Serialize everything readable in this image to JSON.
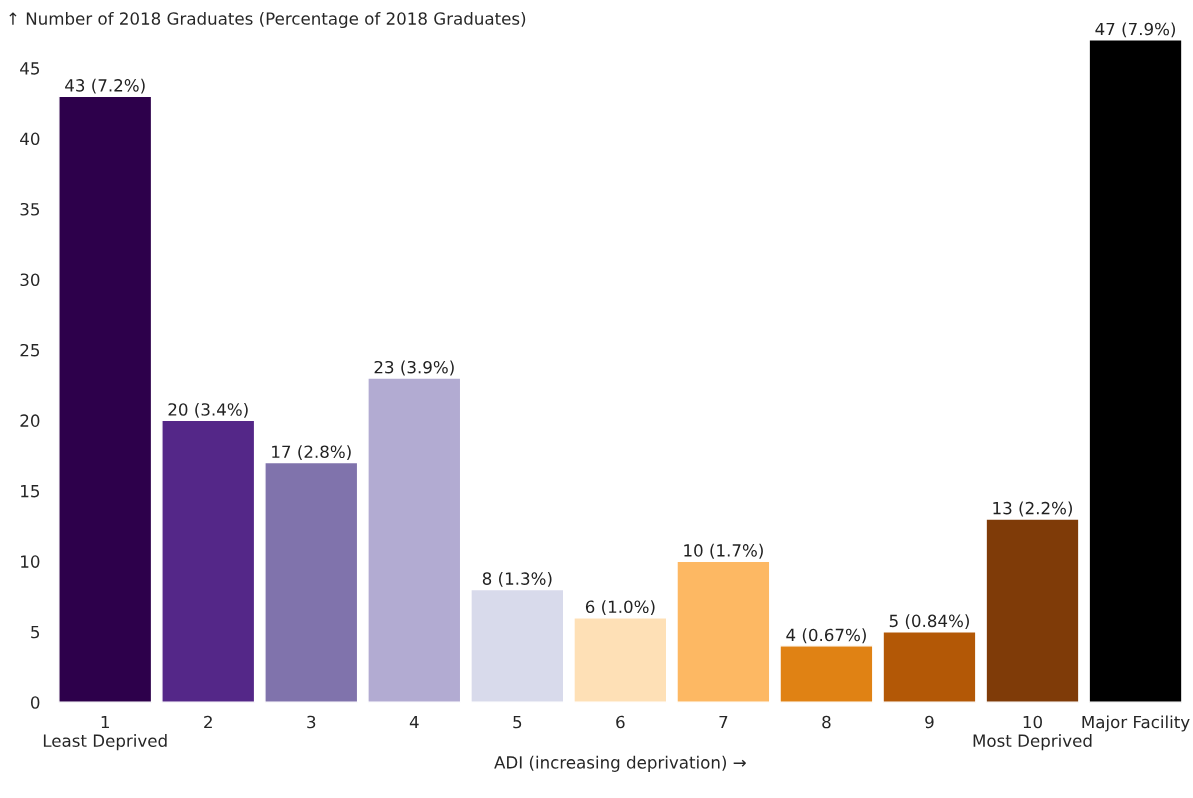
{
  "chart_data": {
    "type": "bar",
    "ylabel": "↑ Number of 2018 Graduates (Percentage of 2018 Graduates)",
    "xlabel": "ADI (increasing deprivation) →",
    "categories": [
      "1\nLeast Deprived",
      "2",
      "3",
      "4",
      "5",
      "6",
      "7",
      "8",
      "9",
      "10\nMost Deprived",
      "Major Facility"
    ],
    "values": [
      43,
      20,
      17,
      23,
      8,
      6,
      10,
      4,
      5,
      13,
      47
    ],
    "colors": [
      "#2d004b",
      "#542788",
      "#8073ac",
      "#b2abd2",
      "#d8daeb",
      "#fee0b6",
      "#fdb863",
      "#e08214",
      "#b35806",
      "#7f3b08",
      "#000000"
    ],
    "value_labels": [
      "43 (7.2%)",
      "20 (3.4%)",
      "17 (2.8%)",
      "23 (3.9%)",
      "8 (1.3%)",
      "6 (1.0%)",
      "10 (1.7%)",
      "4 (0.67%)",
      "5 (0.84%)",
      "13 (2.2%)",
      "47 (7.9%)"
    ],
    "ylim": [
      0,
      47
    ],
    "yticks": [
      0,
      5,
      10,
      15,
      20,
      25,
      30,
      35,
      40,
      45
    ],
    "grid": false,
    "legend": false
  }
}
